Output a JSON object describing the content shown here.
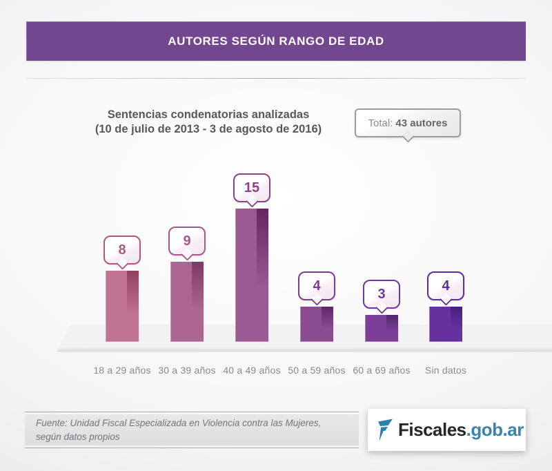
{
  "header": {
    "title": "AUTORES SEGÚN RANGO DE EDAD"
  },
  "subtitle": {
    "line1": "Sentencias condenatorias analizadas",
    "line2": "(10 de julio de 2013 - 3 de agosto de 2016)"
  },
  "total_badge": {
    "label": "Total:",
    "value": "43 autores"
  },
  "chart_data": {
    "type": "bar",
    "title": "Autores según rango de edad",
    "categories": [
      "18 a 29 años",
      "30 a 39 años",
      "40 a 49 años",
      "50 a 59 años",
      "60 a 69 años",
      "Sin datos"
    ],
    "values": [
      8,
      9,
      15,
      4,
      3,
      4
    ],
    "total": 43,
    "ylim": [
      0,
      16
    ],
    "grid": false,
    "legend": "none",
    "data_label_style": "speech-bubble above each bar",
    "bar_colors": [
      "#bf7390",
      "#ac6590",
      "#9a5b92",
      "#8a4b90",
      "#7c3f98",
      "#64319f"
    ],
    "shade_colors": [
      "#93405f",
      "#7e3a64",
      "#66275f",
      "#5d2766",
      "#53256c",
      "#45207a"
    ],
    "bubble_colors": [
      "#b05878",
      "#a75788",
      "#8d4285",
      "#7d3c94",
      "#6c3a9e",
      "#5b2da2"
    ]
  },
  "footer": {
    "source_line1": "Fuente: Unidad Fiscal Especializada en Violencia contra las Mujeres,",
    "source_line2": "según datos propios",
    "logo": {
      "brand": "Fiscales",
      "suffix": ".gob.ar",
      "brand_color": "#26262a",
      "suffix_color": "#3983ad",
      "icon_color": "#2e80a9",
      "icon": "fiscales-flag-icon"
    }
  },
  "colors": {
    "banner": "#73478f",
    "subtitle_text": "#57585a",
    "category_text": "#8a8b8d",
    "badge_border": "#9c9c9e"
  }
}
